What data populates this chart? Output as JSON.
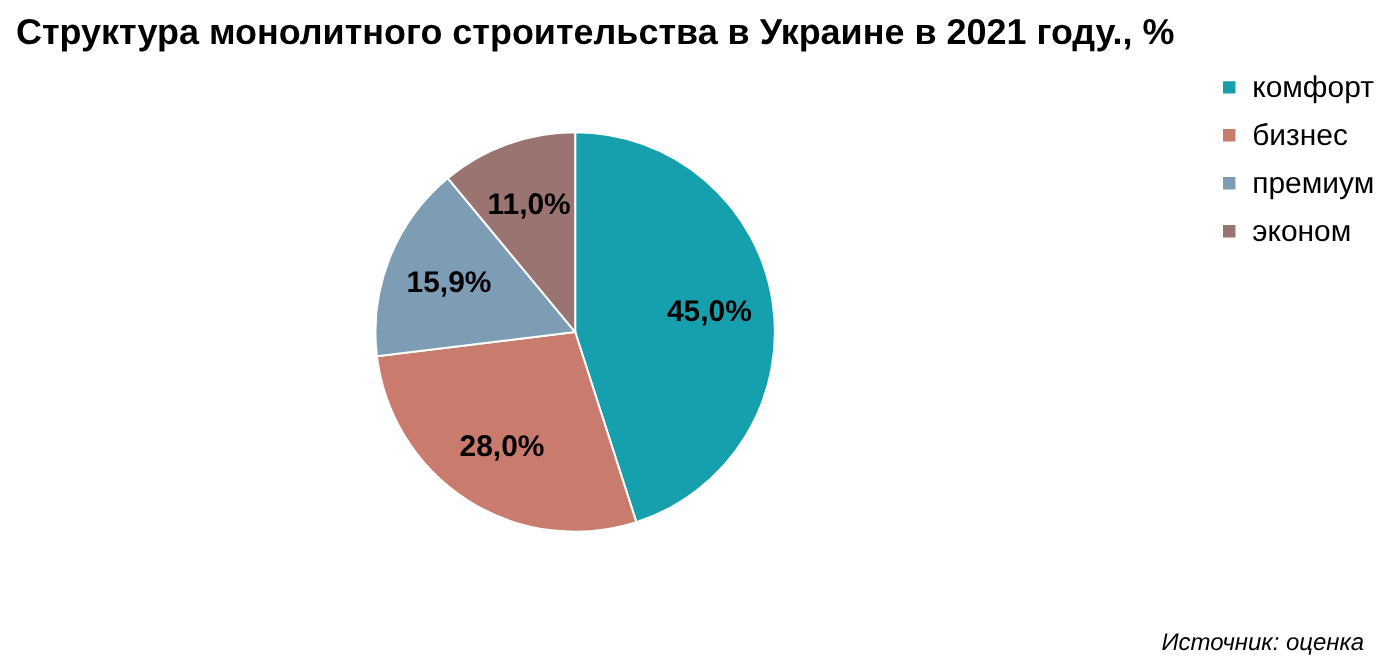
{
  "chart_data": {
    "type": "pie",
    "title": "Структура монолитного строительства в Украине в 2021 году., %",
    "categories": [
      "комфорт",
      "бизнес",
      "премиум",
      "эконом"
    ],
    "values": [
      45.0,
      28.0,
      15.9,
      11.0
    ],
    "value_labels": [
      "45,0%",
      "28,0%",
      "15,9%",
      "11,0%"
    ],
    "colors": [
      "#16a0ad",
      "#c97b6e",
      "#7d9db4",
      "#9a7471"
    ],
    "legend": "right",
    "annotations": [
      "Источник: оценка"
    ]
  }
}
